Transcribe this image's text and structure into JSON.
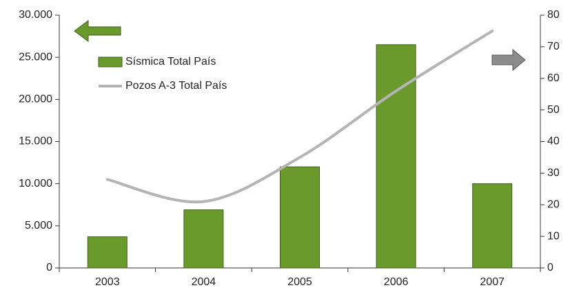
{
  "chart_data": {
    "type": "bar",
    "categories": [
      "2003",
      "2004",
      "2005",
      "2006",
      "2007"
    ],
    "series": [
      {
        "name": "Sísmica Total País",
        "type": "bar",
        "color": "#6b9a2c",
        "values": [
          3700,
          6900,
          12000,
          26500,
          10000
        ]
      },
      {
        "name": "Pozos A-3 Total País",
        "type": "line",
        "axis": "y2",
        "color": "#b4b4b4",
        "values": [
          28,
          21,
          35,
          56,
          75
        ]
      }
    ],
    "ylim": [
      0,
      30000
    ],
    "yticks": [
      0,
      {
        "value": 5000,
        "label": "5.000"
      },
      {
        "value": 10000,
        "label": "10.000"
      },
      {
        "value": 15000,
        "label": "15.000"
      },
      {
        "value": 20000,
        "label": "20.000"
      },
      {
        "value": 25000,
        "label": "25.000"
      },
      {
        "value": 30000,
        "label": "30.000"
      }
    ],
    "y2lim": [
      0,
      80
    ],
    "y2ticks": [
      0,
      10,
      20,
      30,
      40,
      50,
      60,
      70,
      80
    ],
    "grid": false
  }
}
